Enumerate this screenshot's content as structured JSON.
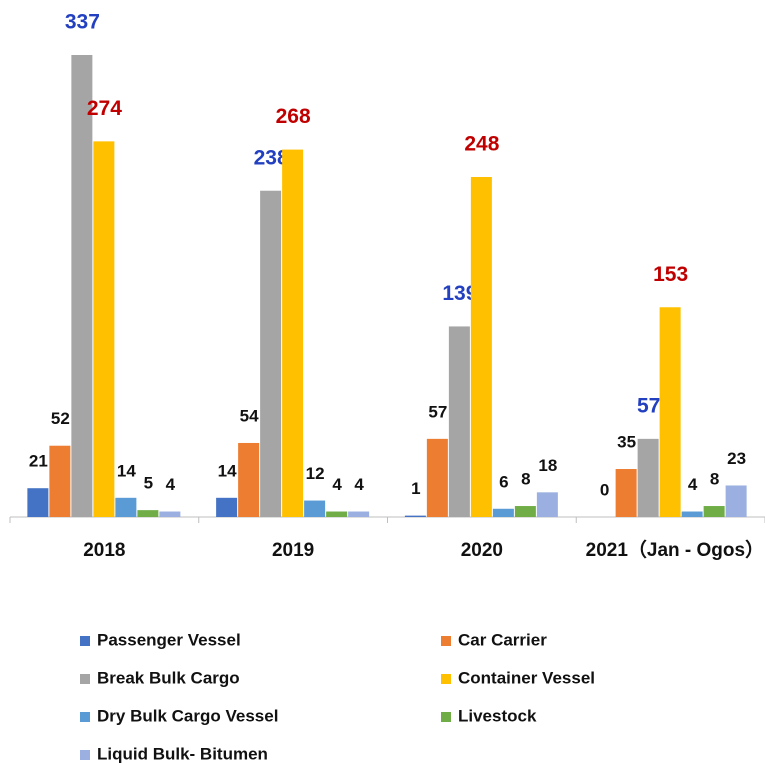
{
  "chart_data": {
    "type": "bar",
    "categories": [
      "2018",
      "2019",
      "2020",
      "2021（Jan - Ogos）"
    ],
    "series": [
      {
        "name": "Passenger Vessel",
        "color": "#4472c4",
        "label_color": "#111111",
        "values": [
          21,
          14,
          1,
          0
        ]
      },
      {
        "name": "Car Carrier",
        "color": "#ed7d31",
        "label_color": "#111111",
        "values": [
          52,
          54,
          57,
          35
        ]
      },
      {
        "name": "Break Bulk Cargo",
        "color": "#a5a5a5",
        "label_color": "#2340c0",
        "values": [
          337,
          238,
          139,
          57
        ]
      },
      {
        "name": "Container Vessel",
        "color": "#ffc000",
        "label_color": "#c00000",
        "values": [
          274,
          268,
          248,
          153
        ]
      },
      {
        "name": "Dry Bulk Cargo Vessel",
        "color": "#5b9bd5",
        "label_color": "#111111",
        "values": [
          14,
          12,
          6,
          4
        ]
      },
      {
        "name": "Livestock",
        "color": "#70ad47",
        "label_color": "#111111",
        "values": [
          5,
          4,
          8,
          8
        ]
      },
      {
        "name": "Liquid Bulk- Bitumen",
        "color": "#9bb0e0",
        "label_color": "#111111",
        "values": [
          4,
          4,
          18,
          23
        ]
      }
    ]
  }
}
